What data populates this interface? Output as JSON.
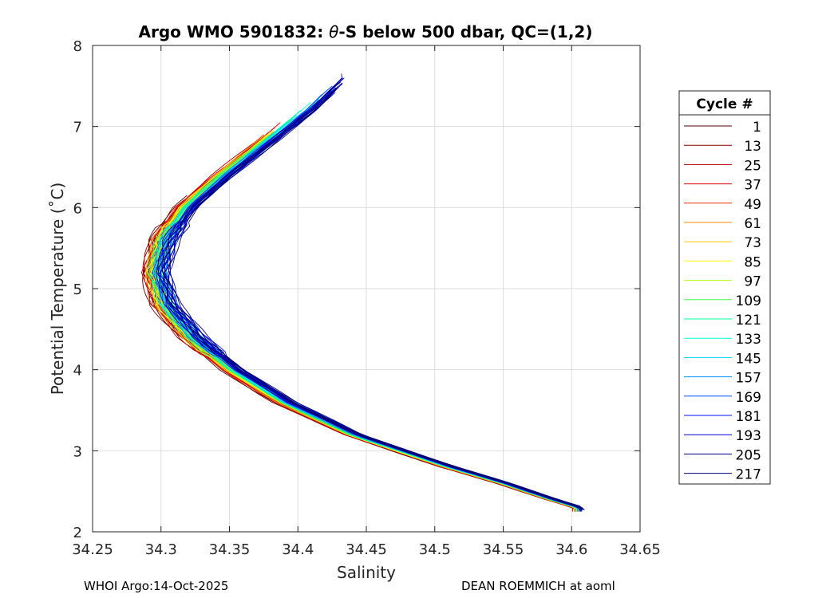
{
  "chart_data": {
    "type": "line",
    "title": {
      "prefix": "Argo WMO 5901832: ",
      "theta": "θ",
      "suffix": "-S below 500 dbar,  QC=(1,2)"
    },
    "xlabel": "Salinity",
    "ylabel": "Potential Temperature (˚C)",
    "xlim": [
      34.25,
      34.65
    ],
    "ylim": [
      2,
      8
    ],
    "xticks": [
      "34.25",
      "34.3",
      "34.35",
      "34.4",
      "34.45",
      "34.5",
      "34.55",
      "34.6",
      "34.65"
    ],
    "yticks": [
      "2",
      "3",
      "4",
      "5",
      "6",
      "7",
      "8"
    ],
    "grid": true,
    "legend_title": "Cycle #",
    "legend_position": "right-outside",
    "curve_shape": {
      "y": [
        7.6,
        7.2,
        6.8,
        6.4,
        6.0,
        5.6,
        5.2,
        4.8,
        4.4,
        4.0,
        3.6,
        3.2,
        2.8,
        2.6,
        2.4,
        2.3
      ],
      "salinity": [
        34.43,
        34.405,
        34.375,
        34.345,
        34.318,
        34.302,
        34.296,
        34.303,
        34.323,
        34.352,
        34.39,
        34.44,
        34.51,
        34.55,
        34.585,
        34.605
      ]
    },
    "series": [
      {
        "name": "1",
        "color": "#5a0000",
        "s_offset": -0.006,
        "t_top": 6.15
      },
      {
        "name": "13",
        "color": "#8b0000",
        "s_offset": -0.006,
        "t_top": 6.1
      },
      {
        "name": "25",
        "color": "#b40000",
        "s_offset": -0.005,
        "t_top": 6.8
      },
      {
        "name": "37",
        "color": "#e00000",
        "s_offset": -0.004,
        "t_top": 7.05
      },
      {
        "name": "49",
        "color": "#ff3000",
        "s_offset": -0.004,
        "t_top": 6.9
      },
      {
        "name": "61",
        "color": "#ff8c00",
        "s_offset": -0.003,
        "t_top": 6.9
      },
      {
        "name": "73",
        "color": "#ffc800",
        "s_offset": -0.002,
        "t_top": 6.95
      },
      {
        "name": "85",
        "color": "#ffff00",
        "s_offset": -0.002,
        "t_top": 6.9
      },
      {
        "name": "97",
        "color": "#b0ff00",
        "s_offset": -0.001,
        "t_top": 6.95
      },
      {
        "name": "109",
        "color": "#40ff40",
        "s_offset": 0.0,
        "t_top": 7.1
      },
      {
        "name": "121",
        "color": "#00ff90",
        "s_offset": 0.0,
        "t_top": 7.2
      },
      {
        "name": "133",
        "color": "#00ffd8",
        "s_offset": 0.001,
        "t_top": 7.3
      },
      {
        "name": "145",
        "color": "#00d0ff",
        "s_offset": 0.002,
        "t_top": 7.45
      },
      {
        "name": "157",
        "color": "#0090ff",
        "s_offset": 0.003,
        "t_top": 7.4
      },
      {
        "name": "169",
        "color": "#0050ff",
        "s_offset": 0.004,
        "t_top": 7.5
      },
      {
        "name": "181",
        "color": "#0010ff",
        "s_offset": 0.005,
        "t_top": 7.6
      },
      {
        "name": "193",
        "color": "#0000d0",
        "s_offset": 0.005,
        "t_top": 7.65
      },
      {
        "name": "205",
        "color": "#00008f",
        "s_offset": 0.006,
        "t_top": 7.6
      },
      {
        "name": "217",
        "color": "#000070",
        "s_offset": 0.006,
        "t_top": 7.55
      }
    ]
  },
  "footer": {
    "left": "WHOI Argo:14-Oct-2025",
    "right": "DEAN ROEMMICH at aoml"
  }
}
